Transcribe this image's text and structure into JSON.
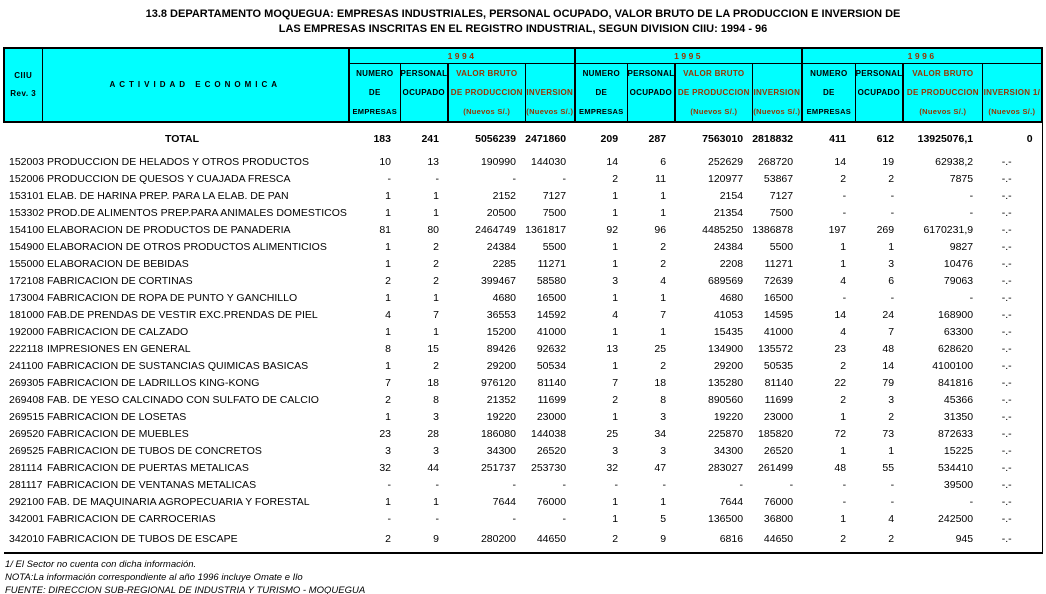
{
  "title": {
    "line1": "13.8 DEPARTAMENTO MOQUEGUA: EMPRESAS INDUSTRIALES, PERSONAL OCUPADO, VALOR BRUTO DE LA PRODUCCION E INVERSION DE",
    "line2": "LAS EMPRESAS  INSCRITAS EN EL REGISTRO INDUSTRIAL, SEGUN DIVISION CIIU: 1994 - 96"
  },
  "colors": {
    "header_bg": "#00FFFF",
    "header_accent": "#993300"
  },
  "table": {
    "ciiu_header": [
      "CIIU",
      "Rev. 3"
    ],
    "actividad_header": "ACTIVIDAD ECONOMICA",
    "year_groups": [
      {
        "year": "1994",
        "columns": [
          [
            "NUMERO",
            "DE",
            "EMPRESAS"
          ],
          [
            "PERSONAL",
            "OCUPADO",
            ""
          ],
          [
            "VALOR BRUTO",
            "DE PRODUCCION",
            "(Nuevos S/.)"
          ],
          [
            "",
            "INVERSION",
            "(Nuevos S/.)"
          ]
        ]
      },
      {
        "year": "1995",
        "columns": [
          [
            "NUMERO",
            "DE",
            "EMPRESAS"
          ],
          [
            "PERSONAL",
            "OCUPADO",
            ""
          ],
          [
            "VALOR BRUTO",
            "DE PRODUCCION",
            "(Nuevos S/.)"
          ],
          [
            "",
            "INVERSION",
            "(Nuevos S/.)"
          ]
        ]
      },
      {
        "year": "1996",
        "columns": [
          [
            "NUMERO",
            "DE",
            "EMPRESAS"
          ],
          [
            "PERSONAL",
            "OCUPADO",
            ""
          ],
          [
            "VALOR BRUTO",
            "DE PRODUCCION",
            "(Nuevos S/.)"
          ],
          [
            "",
            "INVERSION  1/",
            "(Nuevos S/.)"
          ]
        ]
      }
    ],
    "total": {
      "label": "TOTAL",
      "values": [
        "183",
        "241",
        "5056239",
        "2471860",
        "209",
        "287",
        "7563010",
        "2818832",
        "411",
        "612",
        "13925076,1",
        "0"
      ]
    },
    "rows": [
      {
        "code": "152003",
        "activity": "PRODUCCION DE HELADOS Y OTROS PRODUCTOS",
        "values": [
          "10",
          "13",
          "190990",
          "144030",
          "14",
          "6",
          "252629",
          "268720",
          "14",
          "19",
          "62938,2",
          "-.-"
        ]
      },
      {
        "code": "152006",
        "activity": "PRODUCCION DE QUESOS Y CUAJADA FRESCA",
        "values": [
          "-",
          "-",
          "-",
          "-",
          "2",
          "11",
          "120977",
          "53867",
          "2",
          "2",
          "7875",
          "-.-"
        ]
      },
      {
        "code": "153101",
        "activity": "ELAB. DE HARINA PREP. PARA LA ELAB. DE PAN",
        "values": [
          "1",
          "1",
          "2152",
          "7127",
          "1",
          "1",
          "2154",
          "7127",
          "-",
          "-",
          "-",
          "-.-"
        ]
      },
      {
        "code": "153302",
        "activity": "PROD.DE ALIMENTOS PREP.PARA ANIMALES DOMESTICOS",
        "values": [
          "1",
          "1",
          "20500",
          "7500",
          "1",
          "1",
          "21354",
          "7500",
          "-",
          "-",
          "-",
          "-.-"
        ]
      },
      {
        "code": "154100",
        "activity": "ELABORACION DE PRODUCTOS DE PANADERIA",
        "values": [
          "81",
          "80",
          "2464749",
          "1361817",
          "92",
          "96",
          "4485250",
          "1386878",
          "197",
          "269",
          "6170231,9",
          "-.-"
        ]
      },
      {
        "code": "154900",
        "activity": "ELABORACION DE OTROS PRODUCTOS ALIMENTICIOS",
        "values": [
          "1",
          "2",
          "24384",
          "5500",
          "1",
          "2",
          "24384",
          "5500",
          "1",
          "1",
          "9827",
          "-.-"
        ]
      },
      {
        "code": "155000",
        "activity": "ELABORACION DE BEBIDAS",
        "values": [
          "1",
          "2",
          "2285",
          "11271",
          "1",
          "2",
          "2208",
          "11271",
          "1",
          "3",
          "10476",
          "-.-"
        ]
      },
      {
        "code": "172108",
        "activity": "FABRICACION DE CORTINAS",
        "values": [
          "2",
          "2",
          "399467",
          "58580",
          "3",
          "4",
          "689569",
          "72639",
          "4",
          "6",
          "79063",
          "-.-"
        ]
      },
      {
        "code": "173004",
        "activity": "FABRICACION DE ROPA DE PUNTO Y GANCHILLO",
        "values": [
          "1",
          "1",
          "4680",
          "16500",
          "1",
          "1",
          "4680",
          "16500",
          "-",
          "-",
          "-",
          "-.-"
        ]
      },
      {
        "code": "181000",
        "activity": "FAB.DE PRENDAS DE VESTIR EXC.PRENDAS DE PIEL",
        "values": [
          "4",
          "7",
          "36553",
          "14592",
          "4",
          "7",
          "41053",
          "14595",
          "14",
          "24",
          "168900",
          "-.-"
        ]
      },
      {
        "code": "192000",
        "activity": "FABRICACION DE CALZADO",
        "values": [
          "1",
          "1",
          "15200",
          "41000",
          "1",
          "1",
          "15435",
          "41000",
          "4",
          "7",
          "63300",
          "-.-"
        ]
      },
      {
        "code": "222118",
        "activity": "IMPRESIONES EN GENERAL",
        "values": [
          "8",
          "15",
          "89426",
          "92632",
          "13",
          "25",
          "134900",
          "135572",
          "23",
          "48",
          "628620",
          "-.-"
        ]
      },
      {
        "code": "241100",
        "activity": "FABRICACION DE SUSTANCIAS QUIMICAS BASICAS",
        "values": [
          "1",
          "2",
          "29200",
          "50534",
          "1",
          "2",
          "29200",
          "50535",
          "2",
          "14",
          "4100100",
          "-.-"
        ]
      },
      {
        "code": "269305",
        "activity": "FABRICACION DE LADRILLOS KING-KONG",
        "values": [
          "7",
          "18",
          "976120",
          "81140",
          "7",
          "18",
          "135280",
          "81140",
          "22",
          "79",
          "841816",
          "-.-"
        ]
      },
      {
        "code": "269408",
        "activity": "FAB. DE YESO CALCINADO CON SULFATO DE CALCIO",
        "values": [
          "2",
          "8",
          "21352",
          "11699",
          "2",
          "8",
          "890560",
          "11699",
          "2",
          "3",
          "45366",
          "-.-"
        ]
      },
      {
        "code": "269515",
        "activity": "FABRICACION DE LOSETAS",
        "values": [
          "1",
          "3",
          "19220",
          "23000",
          "1",
          "3",
          "19220",
          "23000",
          "1",
          "2",
          "31350",
          "-.-"
        ]
      },
      {
        "code": "269520",
        "activity": "FABRICACION DE MUEBLES",
        "values": [
          "23",
          "28",
          "186080",
          "144038",
          "25",
          "34",
          "225870",
          "185820",
          "72",
          "73",
          "872633",
          "-.-"
        ]
      },
      {
        "code": "269525",
        "activity": "FABRICACION DE TUBOS DE CONCRETOS",
        "values": [
          "3",
          "3",
          "34300",
          "26520",
          "3",
          "3",
          "34300",
          "26520",
          "1",
          "1",
          "15225",
          "-.-"
        ]
      },
      {
        "code": "281114",
        "activity": "FABRICACION DE PUERTAS METALICAS",
        "values": [
          "32",
          "44",
          "251737",
          "253730",
          "32",
          "47",
          "283027",
          "261499",
          "48",
          "55",
          "534410",
          "-.-"
        ]
      },
      {
        "code": "281117",
        "activity": "FABRICACION DE VENTANAS METALICAS",
        "values": [
          "-",
          "-",
          "-",
          "-",
          "-",
          "-",
          "-",
          "-",
          "-",
          "-",
          "39500",
          "-.-"
        ]
      },
      {
        "code": "292100",
        "activity": "FAB. DE MAQUINARIA AGROPECUARIA Y FORESTAL",
        "values": [
          "1",
          "1",
          "7644",
          "76000",
          "1",
          "1",
          "7644",
          "76000",
          "-",
          "-",
          "-",
          "-.-"
        ]
      },
      {
        "code": "342001",
        "activity": "FABRICACION DE CARROCERIAS",
        "values": [
          "-",
          "-",
          "-",
          "-",
          "1",
          "5",
          "136500",
          "36800",
          "1",
          "4",
          "242500",
          "-.-"
        ]
      },
      {
        "code": "342010",
        "activity": "FABRICACION DE TUBOS DE ESCAPE",
        "values": [
          "2",
          "9",
          "280200",
          "44650",
          "2",
          "9",
          "6816",
          "44650",
          "2",
          "2",
          "945",
          "-.-"
        ]
      }
    ]
  },
  "footnotes": [
    "1/ El Sector no cuenta con dicha información.",
    "NOTA:La información correspondiente al año 1996 incluye Omate e Ilo",
    "FUENTE: DIRECCION SUB-REGIONAL DE INDUSTRIA Y TURISMO - MOQUEGUA"
  ]
}
